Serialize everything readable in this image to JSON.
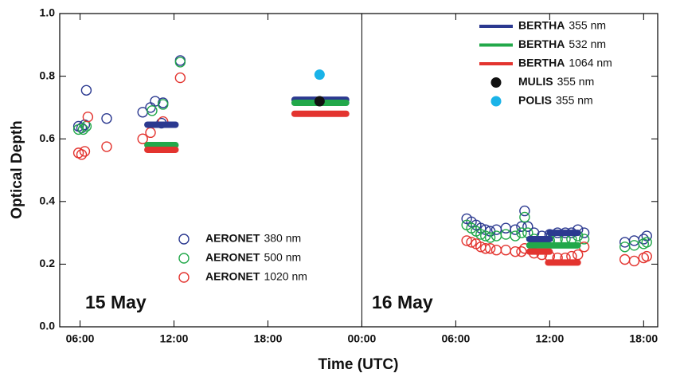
{
  "chart_data": {
    "type": "scatter",
    "xlabel": "Time (UTC)",
    "ylabel": "Optical Depth",
    "annotations": [
      "15 May",
      "16 May"
    ],
    "xlim": [
      4.7,
      42.9
    ],
    "xticks": [
      {
        "value": 6,
        "label": "06:00"
      },
      {
        "value": 12,
        "label": "12:00"
      },
      {
        "value": 18,
        "label": "18:00"
      },
      {
        "value": 24,
        "label": "00:00"
      },
      {
        "value": 30,
        "label": "06:00"
      },
      {
        "value": 36,
        "label": "12:00"
      },
      {
        "value": 42,
        "label": "18:00"
      }
    ],
    "ylim": [
      0,
      1
    ],
    "yticks": [
      {
        "value": 0,
        "label": "0.0"
      },
      0.2,
      0.4,
      0.6,
      0.8,
      {
        "value": 1,
        "label": "1.0"
      }
    ],
    "day_divider": 24,
    "series": [
      {
        "name": "AERONET",
        "wavelength": "380 nm",
        "kind": "circle",
        "color": "#2b3990",
        "x": [
          5.9,
          6.1,
          6.3,
          6.4,
          7.7,
          10.0,
          10.5,
          10.8,
          11.3,
          11.2,
          12.4,
          30.7,
          31.0,
          31.3,
          31.6,
          31.9,
          32.2,
          32.6,
          33.2,
          33.8,
          34.2,
          34.4,
          34.6,
          35.0,
          35.5,
          36.0,
          36.5,
          37.0,
          37.4,
          37.8,
          38.2,
          40.8,
          41.4,
          42.0,
          42.2
        ],
        "values": [
          0.64,
          0.635,
          0.645,
          0.755,
          0.665,
          0.685,
          0.7,
          0.72,
          0.715,
          0.65,
          0.85,
          0.345,
          0.335,
          0.325,
          0.315,
          0.31,
          0.305,
          0.31,
          0.315,
          0.31,
          0.32,
          0.37,
          0.32,
          0.3,
          0.29,
          0.295,
          0.3,
          0.3,
          0.3,
          0.31,
          0.3,
          0.27,
          0.275,
          0.28,
          0.29
        ]
      },
      {
        "name": "AERONET",
        "wavelength": "500 nm",
        "kind": "circle",
        "color": "#22a84a",
        "x": [
          5.9,
          6.2,
          6.4,
          10.6,
          11.3,
          12.4,
          30.7,
          31.0,
          31.3,
          31.6,
          31.9,
          32.2,
          32.6,
          33.2,
          33.8,
          34.2,
          34.4,
          34.6,
          35.0,
          35.5,
          36.0,
          36.5,
          37.0,
          37.4,
          37.8,
          38.2,
          40.8,
          41.4,
          42.0,
          42.2
        ],
        "values": [
          0.63,
          0.63,
          0.64,
          0.69,
          0.71,
          0.845,
          0.325,
          0.315,
          0.305,
          0.295,
          0.29,
          0.285,
          0.29,
          0.295,
          0.29,
          0.3,
          0.35,
          0.3,
          0.28,
          0.27,
          0.275,
          0.28,
          0.28,
          0.28,
          0.29,
          0.28,
          0.255,
          0.26,
          0.265,
          0.27
        ]
      },
      {
        "name": "AERONET",
        "wavelength": "1020 nm",
        "kind": "circle",
        "color": "#e3342f",
        "x": [
          5.9,
          6.1,
          6.3,
          6.5,
          7.7,
          10.0,
          10.5,
          11.3,
          12.4,
          30.7,
          31.0,
          31.3,
          31.6,
          31.9,
          32.2,
          32.6,
          33.2,
          33.8,
          34.2,
          34.4,
          35.0,
          35.5,
          36.0,
          36.5,
          37.0,
          37.4,
          37.8,
          38.2,
          40.8,
          41.4,
          42.0,
          42.2
        ],
        "values": [
          0.555,
          0.55,
          0.56,
          0.67,
          0.575,
          0.6,
          0.62,
          0.655,
          0.795,
          0.275,
          0.27,
          0.265,
          0.255,
          0.25,
          0.25,
          0.245,
          0.245,
          0.24,
          0.24,
          0.25,
          0.235,
          0.23,
          0.225,
          0.22,
          0.22,
          0.225,
          0.23,
          0.255,
          0.215,
          0.21,
          0.22,
          0.225
        ]
      },
      {
        "name": "BERTHA",
        "wavelength": "355 nm",
        "kind": "segment",
        "color": "#2b3990",
        "x": [
          [
            10.3,
            12.1
          ],
          [
            19.7,
            23.0
          ],
          [
            34.7,
            36.0
          ],
          [
            36.0,
            37.8
          ]
        ],
        "values": [
          0.645,
          0.725,
          0.28,
          0.3
        ]
      },
      {
        "name": "BERTHA",
        "wavelength": "532 nm",
        "kind": "segment",
        "color": "#22a84a",
        "x": [
          [
            10.3,
            12.1
          ],
          [
            19.7,
            23.0
          ],
          [
            34.7,
            37.8
          ]
        ],
        "values": [
          0.58,
          0.715,
          0.26
        ]
      },
      {
        "name": "BERTHA",
        "wavelength": "1064 nm",
        "kind": "segment",
        "color": "#e3342f",
        "x": [
          [
            10.3,
            12.1
          ],
          [
            19.7,
            23.0
          ],
          [
            34.7,
            36.0
          ],
          [
            35.9,
            37.8
          ]
        ],
        "values": [
          0.565,
          0.68,
          0.24,
          0.205
        ]
      },
      {
        "name": "MULIS",
        "wavelength": "355 nm",
        "kind": "dot",
        "color": "#111111",
        "x": [
          21.3
        ],
        "values": [
          0.72
        ]
      },
      {
        "name": "POLIS",
        "wavelength": "355 nm",
        "kind": "dot",
        "color": "#1ab3e8",
        "x": [
          21.3
        ],
        "values": [
          0.805
        ]
      }
    ]
  }
}
